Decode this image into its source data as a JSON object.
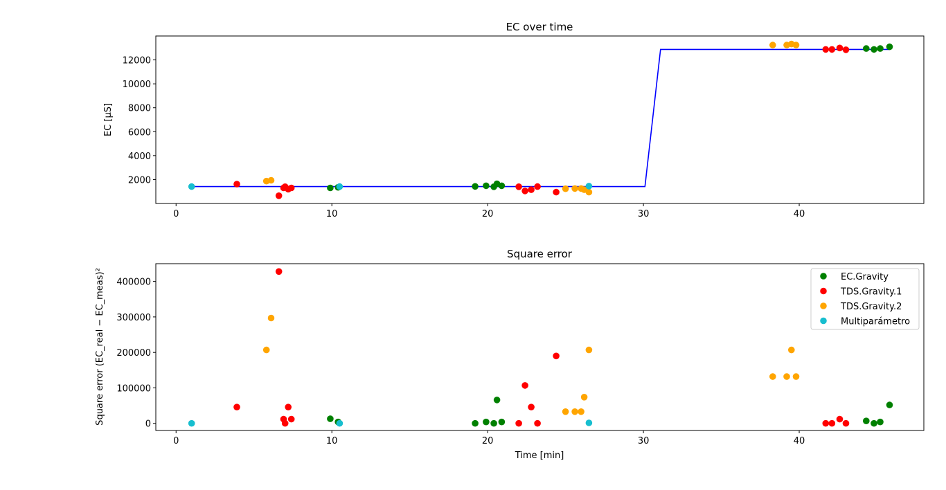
{
  "chart_data": [
    {
      "type": "scatter",
      "title": "EC over time",
      "xlabel": "",
      "ylabel": "EC [μS]",
      "xlim": [
        -1.3,
        48
      ],
      "ylim": [
        0,
        14000
      ],
      "xticks": [
        "0",
        "10",
        "20",
        "30",
        "40"
      ],
      "yticks": [
        "2000",
        "4000",
        "6000",
        "8000",
        "10000",
        "12000"
      ],
      "line": {
        "color": "#0000ff",
        "points": [
          [
            1,
            1413
          ],
          [
            30.1,
            1413
          ],
          [
            31.1,
            12880
          ],
          [
            45.8,
            12880
          ]
        ]
      },
      "series": [
        {
          "name": "EC.Gravity",
          "color": "#008000",
          "points": [
            [
              9.9,
              1300
            ],
            [
              10.4,
              1350
            ],
            [
              19.2,
              1430
            ],
            [
              19.9,
              1480
            ],
            [
              20.4,
              1400
            ],
            [
              20.6,
              1650
            ],
            [
              20.9,
              1480
            ],
            [
              44.3,
              12950
            ],
            [
              44.8,
              12880
            ],
            [
              45.2,
              12950
            ],
            [
              45.8,
              13100
            ]
          ]
        },
        {
          "name": "TDS.Gravity.1",
          "color": "#ff0000",
          "points": [
            [
              3.9,
              1620
            ],
            [
              6.6,
              650
            ],
            [
              6.9,
              1300
            ],
            [
              7.0,
              1400
            ],
            [
              7.2,
              1200
            ],
            [
              7.4,
              1300
            ],
            [
              22.0,
              1400
            ],
            [
              22.4,
              1050
            ],
            [
              22.8,
              1150
            ],
            [
              23.2,
              1410
            ],
            [
              24.4,
              950
            ],
            [
              41.7,
              12880
            ],
            [
              42.1,
              12880
            ],
            [
              42.6,
              13000
            ],
            [
              43.0,
              12850
            ]
          ]
        },
        {
          "name": "TDS.Gravity.2",
          "color": "#ffa500",
          "points": [
            [
              5.8,
              1870
            ],
            [
              6.1,
              1940
            ],
            [
              25.0,
              1230
            ],
            [
              25.6,
              1250
            ],
            [
              26.0,
              1250
            ],
            [
              26.2,
              1150
            ],
            [
              26.5,
              950
            ],
            [
              38.3,
              13240
            ],
            [
              39.2,
              13240
            ],
            [
              39.5,
              13330
            ],
            [
              39.8,
              13240
            ]
          ]
        },
        {
          "name": "Multiparámetro",
          "color": "#17becf",
          "points": [
            [
              1.0,
              1413
            ],
            [
              10.5,
              1413
            ],
            [
              26.5,
              1450
            ]
          ]
        }
      ]
    },
    {
      "type": "scatter",
      "title": "Square error",
      "xlabel": "Time [min]",
      "ylabel": "Square error (EC_real − EC_meas)²",
      "xlim": [
        -1.3,
        48
      ],
      "ylim": [
        -20000,
        450000
      ],
      "xticks": [
        "0",
        "10",
        "20",
        "30",
        "40"
      ],
      "yticks": [
        "0",
        "100000",
        "200000",
        "300000",
        "400000"
      ],
      "legend": "top-right",
      "series": [
        {
          "name": "EC.Gravity",
          "color": "#008000",
          "points": [
            [
              9.9,
              13000
            ],
            [
              10.4,
              4000
            ],
            [
              19.2,
              0
            ],
            [
              19.9,
              4000
            ],
            [
              20.4,
              0
            ],
            [
              20.6,
              66000
            ],
            [
              20.9,
              4000
            ],
            [
              44.3,
              7000
            ],
            [
              44.8,
              0
            ],
            [
              45.2,
              4000
            ],
            [
              45.8,
              52000
            ]
          ]
        },
        {
          "name": "TDS.Gravity.1",
          "color": "#ff0000",
          "points": [
            [
              3.9,
              46000
            ],
            [
              6.6,
              428000
            ],
            [
              6.9,
              12000
            ],
            [
              7.0,
              0
            ],
            [
              7.2,
              46000
            ],
            [
              7.4,
              12000
            ],
            [
              22.0,
              0
            ],
            [
              22.4,
              107000
            ],
            [
              22.8,
              46000
            ],
            [
              23.2,
              0
            ],
            [
              24.4,
              190000
            ],
            [
              41.7,
              0
            ],
            [
              42.1,
              0
            ],
            [
              42.6,
              12000
            ],
            [
              43.0,
              0
            ]
          ]
        },
        {
          "name": "TDS.Gravity.2",
          "color": "#ffa500",
          "points": [
            [
              5.8,
              207000
            ],
            [
              6.1,
              297000
            ],
            [
              25.0,
              33000
            ],
            [
              25.6,
              33000
            ],
            [
              26.0,
              33000
            ],
            [
              26.2,
              74000
            ],
            [
              26.5,
              207000
            ],
            [
              38.3,
              132000
            ],
            [
              39.2,
              132000
            ],
            [
              39.5,
              207000
            ],
            [
              39.8,
              132000
            ]
          ]
        },
        {
          "name": "Multiparámetro",
          "color": "#17becf",
          "points": [
            [
              1.0,
              0
            ],
            [
              10.5,
              0
            ],
            [
              26.5,
              1500
            ]
          ]
        }
      ]
    }
  ]
}
